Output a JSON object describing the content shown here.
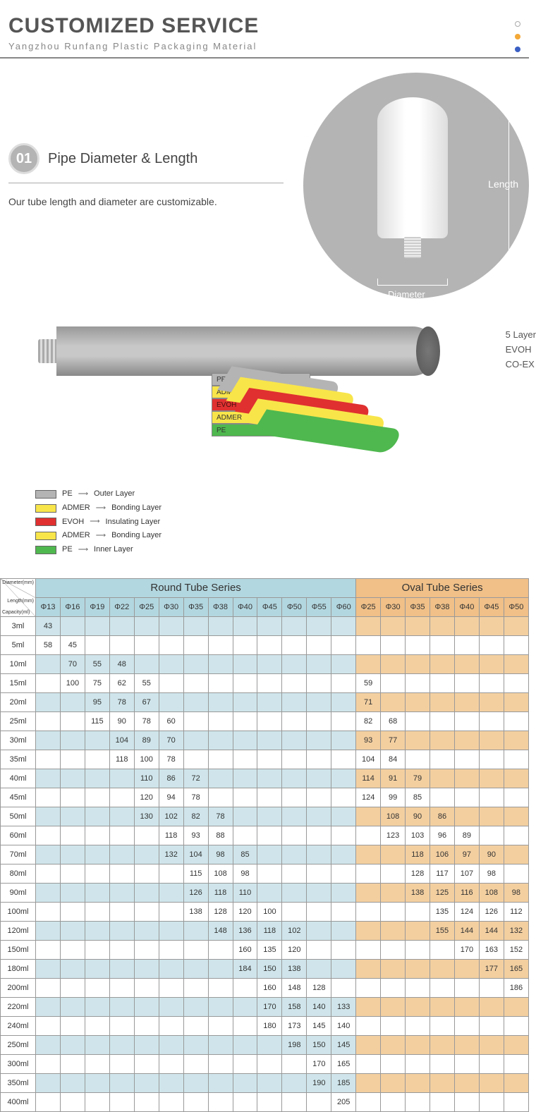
{
  "header": {
    "title": "CUSTOMIZED SERVICE",
    "subtitle": "Yangzhou Runfang Plastic Packaging Material"
  },
  "dots": {
    "colors": [
      "#ffffff",
      "#f4a836",
      "#3a5fc4"
    ]
  },
  "section1": {
    "badge": "01",
    "title": "Pipe Diameter & Length",
    "desc": "Our tube length and diameter are customizable.",
    "length_label": "Length",
    "diameter_label": "Diameter"
  },
  "layers": {
    "side_labels": [
      "5 Layer",
      "EVOH",
      "CO-EX"
    ],
    "legend": [
      {
        "color": "#b4b4b4",
        "name": "PE",
        "role": "Outer Layer"
      },
      {
        "color": "#f8e54a",
        "name": "ADMER",
        "role": "Bonding Layer"
      },
      {
        "color": "#e03030",
        "name": "EVOH",
        "role": "Insulating Layer"
      },
      {
        "color": "#f8e54a",
        "name": "ADMER",
        "role": "Bonding Layer"
      },
      {
        "color": "#4fb84f",
        "name": "PE",
        "role": "Inner Layer"
      }
    ],
    "stack_labels": [
      "PE",
      "ADMER",
      "EVOH",
      "ADMER",
      "PE"
    ]
  },
  "table": {
    "corner_labels": {
      "diameter": "Diameter(mm)",
      "length": "Length(mm)",
      "capacity": "Capacity(ml)"
    },
    "round_title": "Round Tube Series",
    "oval_title": "Oval Tube Series",
    "round_cols": [
      "Φ13",
      "Φ16",
      "Φ19",
      "Φ22",
      "Φ25",
      "Φ30",
      "Φ35",
      "Φ38",
      "Φ40",
      "Φ45",
      "Φ50",
      "Φ55",
      "Φ60"
    ],
    "oval_cols": [
      "Φ25",
      "Φ30",
      "Φ35",
      "Φ38",
      "Φ40",
      "Φ45",
      "Φ50"
    ],
    "rows": [
      {
        "cap": "3ml",
        "r": [
          "43",
          "",
          "",
          "",
          "",
          "",
          "",
          "",
          "",
          "",
          "",
          "",
          ""
        ],
        "o": [
          "",
          "",
          "",
          "",
          "",
          "",
          ""
        ]
      },
      {
        "cap": "5ml",
        "r": [
          "58",
          "45",
          "",
          "",
          "",
          "",
          "",
          "",
          "",
          "",
          "",
          "",
          ""
        ],
        "o": [
          "",
          "",
          "",
          "",
          "",
          "",
          ""
        ]
      },
      {
        "cap": "10ml",
        "r": [
          "",
          "70",
          "55",
          "48",
          "",
          "",
          "",
          "",
          "",
          "",
          "",
          "",
          ""
        ],
        "o": [
          "",
          "",
          "",
          "",
          "",
          "",
          ""
        ]
      },
      {
        "cap": "15ml",
        "r": [
          "",
          "100",
          "75",
          "62",
          "55",
          "",
          "",
          "",
          "",
          "",
          "",
          "",
          ""
        ],
        "o": [
          "59",
          "",
          "",
          "",
          "",
          "",
          ""
        ]
      },
      {
        "cap": "20ml",
        "r": [
          "",
          "",
          "95",
          "78",
          "67",
          "",
          "",
          "",
          "",
          "",
          "",
          "",
          ""
        ],
        "o": [
          "71",
          "",
          "",
          "",
          "",
          "",
          ""
        ]
      },
      {
        "cap": "25ml",
        "r": [
          "",
          "",
          "115",
          "90",
          "78",
          "60",
          "",
          "",
          "",
          "",
          "",
          "",
          ""
        ],
        "o": [
          "82",
          "68",
          "",
          "",
          "",
          "",
          ""
        ]
      },
      {
        "cap": "30ml",
        "r": [
          "",
          "",
          "",
          "104",
          "89",
          "70",
          "",
          "",
          "",
          "",
          "",
          "",
          ""
        ],
        "o": [
          "93",
          "77",
          "",
          "",
          "",
          "",
          ""
        ]
      },
      {
        "cap": "35ml",
        "r": [
          "",
          "",
          "",
          "118",
          "100",
          "78",
          "",
          "",
          "",
          "",
          "",
          "",
          ""
        ],
        "o": [
          "104",
          "84",
          "",
          "",
          "",
          "",
          ""
        ]
      },
      {
        "cap": "40ml",
        "r": [
          "",
          "",
          "",
          "",
          "110",
          "86",
          "72",
          "",
          "",
          "",
          "",
          "",
          ""
        ],
        "o": [
          "114",
          "91",
          "79",
          "",
          "",
          "",
          ""
        ]
      },
      {
        "cap": "45ml",
        "r": [
          "",
          "",
          "",
          "",
          "120",
          "94",
          "78",
          "",
          "",
          "",
          "",
          "",
          ""
        ],
        "o": [
          "124",
          "99",
          "85",
          "",
          "",
          "",
          ""
        ]
      },
      {
        "cap": "50ml",
        "r": [
          "",
          "",
          "",
          "",
          "130",
          "102",
          "82",
          "78",
          "",
          "",
          "",
          "",
          ""
        ],
        "o": [
          "",
          "108",
          "90",
          "86",
          "",
          "",
          ""
        ]
      },
      {
        "cap": "60ml",
        "r": [
          "",
          "",
          "",
          "",
          "",
          "118",
          "93",
          "88",
          "",
          "",
          "",
          "",
          ""
        ],
        "o": [
          "",
          "123",
          "103",
          "96",
          "89",
          "",
          ""
        ]
      },
      {
        "cap": "70ml",
        "r": [
          "",
          "",
          "",
          "",
          "",
          "132",
          "104",
          "98",
          "85",
          "",
          "",
          "",
          ""
        ],
        "o": [
          "",
          "",
          "118",
          "106",
          "97",
          "90",
          ""
        ]
      },
      {
        "cap": "80ml",
        "r": [
          "",
          "",
          "",
          "",
          "",
          "",
          "115",
          "108",
          "98",
          "",
          "",
          "",
          ""
        ],
        "o": [
          "",
          "",
          "128",
          "117",
          "107",
          "98",
          ""
        ]
      },
      {
        "cap": "90ml",
        "r": [
          "",
          "",
          "",
          "",
          "",
          "",
          "126",
          "118",
          "110",
          "",
          "",
          "",
          ""
        ],
        "o": [
          "",
          "",
          "138",
          "125",
          "116",
          "108",
          "98"
        ]
      },
      {
        "cap": "100ml",
        "r": [
          "",
          "",
          "",
          "",
          "",
          "",
          "138",
          "128",
          "120",
          "100",
          "",
          "",
          ""
        ],
        "o": [
          "",
          "",
          "",
          "135",
          "124",
          "126",
          "112"
        ]
      },
      {
        "cap": "120ml",
        "r": [
          "",
          "",
          "",
          "",
          "",
          "",
          "",
          "148",
          "136",
          "118",
          "102",
          "",
          ""
        ],
        "o": [
          "",
          "",
          "",
          "155",
          "144",
          "144",
          "132"
        ]
      },
      {
        "cap": "150ml",
        "r": [
          "",
          "",
          "",
          "",
          "",
          "",
          "",
          "",
          "160",
          "135",
          "120",
          "",
          ""
        ],
        "o": [
          "",
          "",
          "",
          "",
          "170",
          "163",
          "152"
        ]
      },
      {
        "cap": "180ml",
        "r": [
          "",
          "",
          "",
          "",
          "",
          "",
          "",
          "",
          "184",
          "150",
          "138",
          "",
          ""
        ],
        "o": [
          "",
          "",
          "",
          "",
          "",
          "177",
          "165"
        ]
      },
      {
        "cap": "200ml",
        "r": [
          "",
          "",
          "",
          "",
          "",
          "",
          "",
          "",
          "",
          "160",
          "148",
          "128",
          ""
        ],
        "o": [
          "",
          "",
          "",
          "",
          "",
          "",
          "186"
        ]
      },
      {
        "cap": "220ml",
        "r": [
          "",
          "",
          "",
          "",
          "",
          "",
          "",
          "",
          "",
          "170",
          "158",
          "140",
          "133"
        ],
        "o": [
          "",
          "",
          "",
          "",
          "",
          "",
          ""
        ]
      },
      {
        "cap": "240ml",
        "r": [
          "",
          "",
          "",
          "",
          "",
          "",
          "",
          "",
          "",
          "180",
          "173",
          "145",
          "140"
        ],
        "o": [
          "",
          "",
          "",
          "",
          "",
          "",
          ""
        ]
      },
      {
        "cap": "250ml",
        "r": [
          "",
          "",
          "",
          "",
          "",
          "",
          "",
          "",
          "",
          "",
          "198",
          "150",
          "145"
        ],
        "o": [
          "",
          "",
          "",
          "",
          "",
          "",
          ""
        ]
      },
      {
        "cap": "300ml",
        "r": [
          "",
          "",
          "",
          "",
          "",
          "",
          "",
          "",
          "",
          "",
          "",
          "170",
          "165"
        ],
        "o": [
          "",
          "",
          "",
          "",
          "",
          "",
          ""
        ]
      },
      {
        "cap": "350ml",
        "r": [
          "",
          "",
          "",
          "",
          "",
          "",
          "",
          "",
          "",
          "",
          "",
          "190",
          "185"
        ],
        "o": [
          "",
          "",
          "",
          "",
          "",
          "",
          ""
        ]
      },
      {
        "cap": "400ml",
        "r": [
          "",
          "",
          "",
          "",
          "",
          "",
          "",
          "",
          "",
          "",
          "",
          "",
          "205"
        ],
        "o": [
          "",
          "",
          "",
          "",
          "",
          "",
          ""
        ]
      }
    ],
    "colors": {
      "round_header": "#b3d7e0",
      "round_row_alt": "#cfe5eb",
      "oval_header": "#f0c088",
      "oval_row_alt": "#f3cfa0",
      "border": "#999999"
    }
  }
}
